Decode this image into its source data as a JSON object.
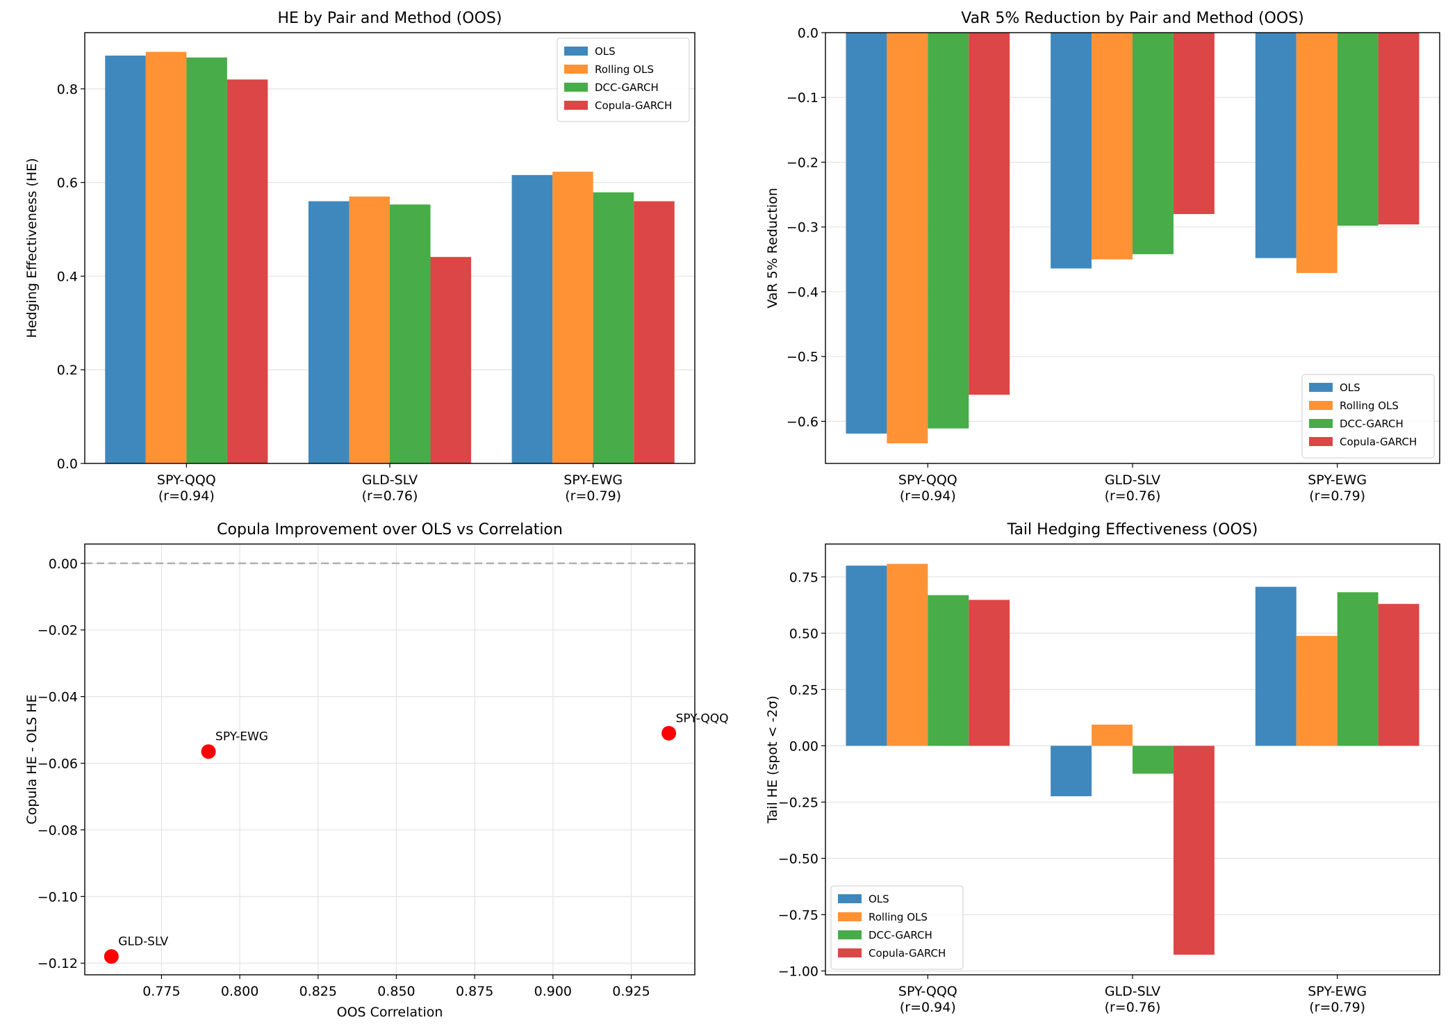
{
  "chart_data": [
    {
      "type": "bar",
      "title": "HE by Pair and Method (OOS)",
      "xlabel": "",
      "ylabel": "Hedging Effectiveness (HE)",
      "categories": [
        "SPY-QQQ\n(r=0.94)",
        "GLD-SLV\n(r=0.76)",
        "SPY-EWG\n(r=0.79)"
      ],
      "series": [
        {
          "name": "OLS",
          "values": [
            0.871,
            0.56,
            0.616
          ]
        },
        {
          "name": "Rolling OLS",
          "values": [
            0.879,
            0.57,
            0.623
          ]
        },
        {
          "name": "DCC-GARCH",
          "values": [
            0.867,
            0.553,
            0.579
          ]
        },
        {
          "name": "Copula-GARCH",
          "values": [
            0.82,
            0.441,
            0.56
          ]
        }
      ],
      "ylim": [
        0,
        0.92
      ],
      "yticks": [
        0.0,
        0.2,
        0.4,
        0.6,
        0.8
      ],
      "ytick_labels": [
        "0.0",
        "0.2",
        "0.4",
        "0.6",
        "0.8"
      ],
      "grid": "y",
      "legend": "top-right",
      "colors": [
        "#3f88be",
        "#ff9234",
        "#48ac48",
        "#dc4646"
      ]
    },
    {
      "type": "bar",
      "title": "VaR 5% Reduction by Pair and Method (OOS)",
      "xlabel": "",
      "ylabel": "VaR 5% Reduction",
      "categories": [
        "SPY-QQQ\n(r=0.94)",
        "GLD-SLV\n(r=0.76)",
        "SPY-EWG\n(r=0.79)"
      ],
      "series": [
        {
          "name": "OLS",
          "values": [
            -0.619,
            -0.364,
            -0.348
          ]
        },
        {
          "name": "Rolling OLS",
          "values": [
            -0.634,
            -0.35,
            -0.371
          ]
        },
        {
          "name": "DCC-GARCH",
          "values": [
            -0.611,
            -0.342,
            -0.298
          ]
        },
        {
          "name": "Copula-GARCH",
          "values": [
            -0.559,
            -0.28,
            -0.296
          ]
        }
      ],
      "ylim": [
        -0.665,
        0
      ],
      "yticks": [
        0.0,
        -0.1,
        -0.2,
        -0.3,
        -0.4,
        -0.5,
        -0.6
      ],
      "ytick_labels": [
        "0.0",
        "−0.1",
        "−0.2",
        "−0.3",
        "−0.4",
        "−0.5",
        "−0.6"
      ],
      "grid": "y",
      "legend": "bottom-right",
      "colors": [
        "#3f88be",
        "#ff9234",
        "#48ac48",
        "#dc4646"
      ]
    },
    {
      "type": "scatter",
      "title": "Copula Improvement over OLS vs Correlation",
      "xlabel": "OOS Correlation",
      "ylabel": "Copula HE - OLS HE",
      "points": [
        {
          "label": "SPY-QQQ",
          "x": 0.937,
          "y": -0.051
        },
        {
          "label": "GLD-SLV",
          "x": 0.759,
          "y": -0.118
        },
        {
          "label": "SPY-EWG",
          "x": 0.79,
          "y": -0.0565
        }
      ],
      "xlim": [
        0.7505,
        0.9453
      ],
      "ylim": [
        -0.1235,
        0.0058
      ],
      "xticks": [
        0.775,
        0.8,
        0.825,
        0.85,
        0.875,
        0.9,
        0.925
      ],
      "xtick_labels": [
        "0.775",
        "0.800",
        "0.825",
        "0.850",
        "0.875",
        "0.900",
        "0.925"
      ],
      "yticks": [
        0.0,
        -0.02,
        -0.04,
        -0.06,
        -0.08,
        -0.1,
        -0.12
      ],
      "ytick_labels": [
        "0.00",
        "−0.02",
        "−0.04",
        "−0.06",
        "−0.08",
        "−0.10",
        "−0.12"
      ],
      "reference_line_y": 0,
      "grid": "both",
      "colors": [
        "#ff0000",
        "#b0b0b0"
      ]
    },
    {
      "type": "bar",
      "title": "Tail Hedging Effectiveness (OOS)",
      "xlabel": "",
      "ylabel": "Tail HE (spot < -2σ)",
      "categories": [
        "SPY-QQQ\n(r=0.94)",
        "GLD-SLV\n(r=0.76)",
        "SPY-EWG\n(r=0.79)"
      ],
      "series": [
        {
          "name": "OLS",
          "values": [
            0.8,
            -0.224,
            0.706
          ]
        },
        {
          "name": "Rolling OLS",
          "values": [
            0.808,
            0.094,
            0.488
          ]
        },
        {
          "name": "DCC-GARCH",
          "values": [
            0.669,
            -0.124,
            0.682
          ]
        },
        {
          "name": "Copula-GARCH",
          "values": [
            0.648,
            -0.928,
            0.63
          ]
        }
      ],
      "ylim": [
        -1.017,
        0.896
      ],
      "yticks": [
        0.75,
        0.5,
        0.25,
        0.0,
        -0.25,
        -0.5,
        -0.75,
        -1.0
      ],
      "ytick_labels": [
        "0.75",
        "0.50",
        "0.25",
        "0.00",
        "−0.25",
        "−0.50",
        "−0.75",
        "−1.00"
      ],
      "grid": "y",
      "legend": "bottom-left",
      "colors": [
        "#3f88be",
        "#ff9234",
        "#48ac48",
        "#dc4646"
      ]
    }
  ]
}
